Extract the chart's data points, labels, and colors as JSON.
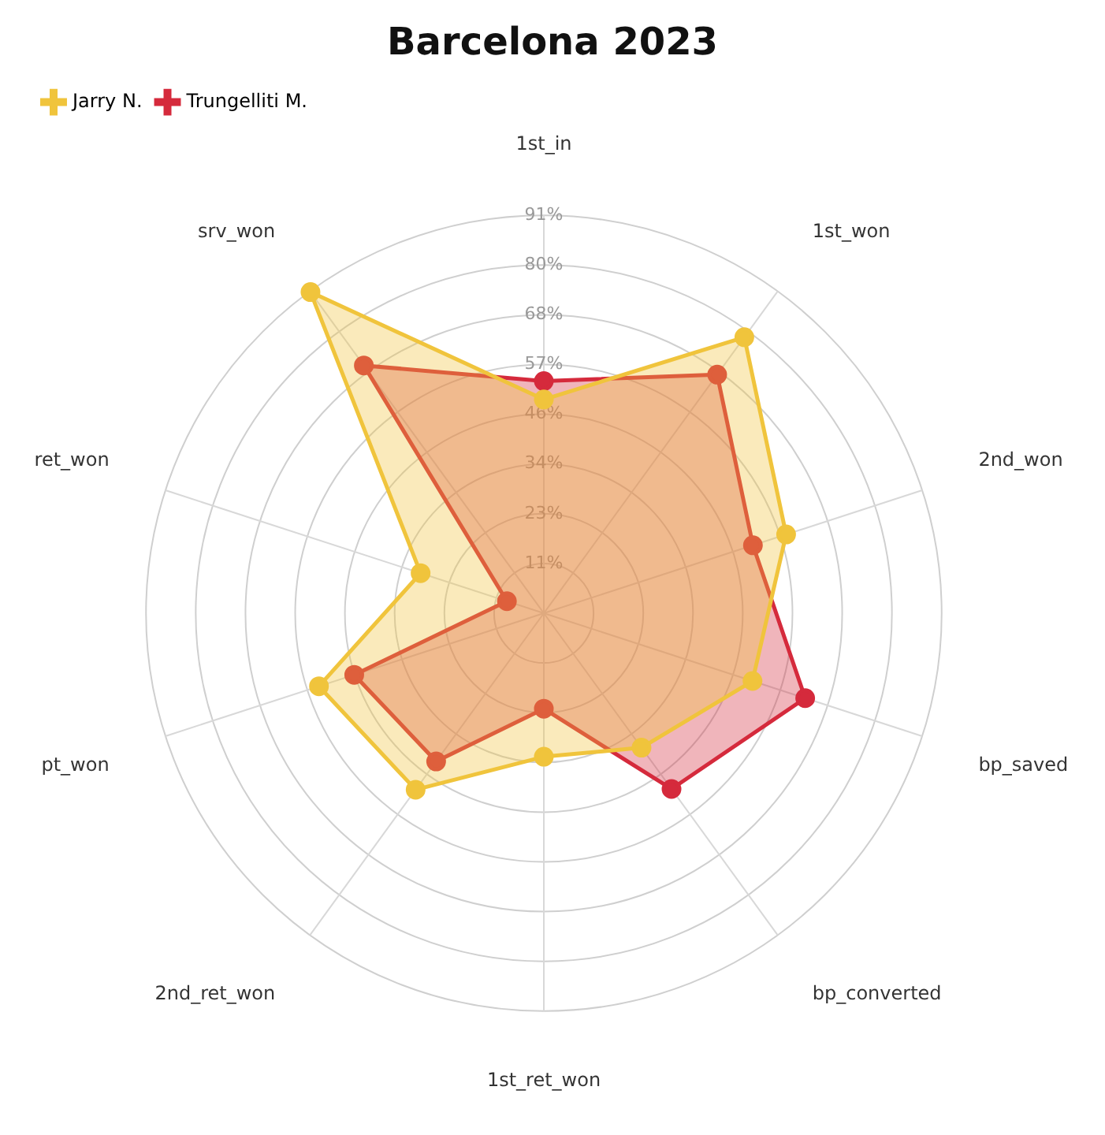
{
  "chart_data": {
    "type": "radar",
    "title": "Barcelona 2023",
    "categories": [
      "1st_in",
      "1st_won",
      "2nd_won",
      "bp_saved",
      "bp_converted",
      "1st_ret_won",
      "2nd_ret_won",
      "pt_won",
      "ret_won",
      "srv_won"
    ],
    "series": [
      {
        "name": "Jarry N.",
        "color": "#f0c43c",
        "values": [
          49,
          78.2,
          58.4,
          50.3,
          38.1,
          32.9,
          50,
          54.2,
          29.7,
          91
        ]
      },
      {
        "name": "Trungelliti M.",
        "color": "#d52a3c",
        "values": [
          53.2,
          67.6,
          50.4,
          63,
          49.8,
          21.9,
          42,
          45.7,
          8.9,
          70.2
        ]
      }
    ],
    "ylim": [
      0,
      91.2
    ],
    "yticks": [
      {
        "value": 11.4,
        "label": "11%"
      },
      {
        "value": 22.8,
        "label": "23%"
      },
      {
        "value": 34.2,
        "label": "34%"
      },
      {
        "value": 45.6,
        "label": "46%"
      },
      {
        "value": 57,
        "label": "57%"
      },
      {
        "value": 68.4,
        "label": "68%"
      },
      {
        "value": 79.8,
        "label": "80%"
      },
      {
        "value": 91.2,
        "label": "91%"
      }
    ],
    "grid": true,
    "legend": "top left",
    "marker": "circle",
    "line_style": "solid"
  }
}
